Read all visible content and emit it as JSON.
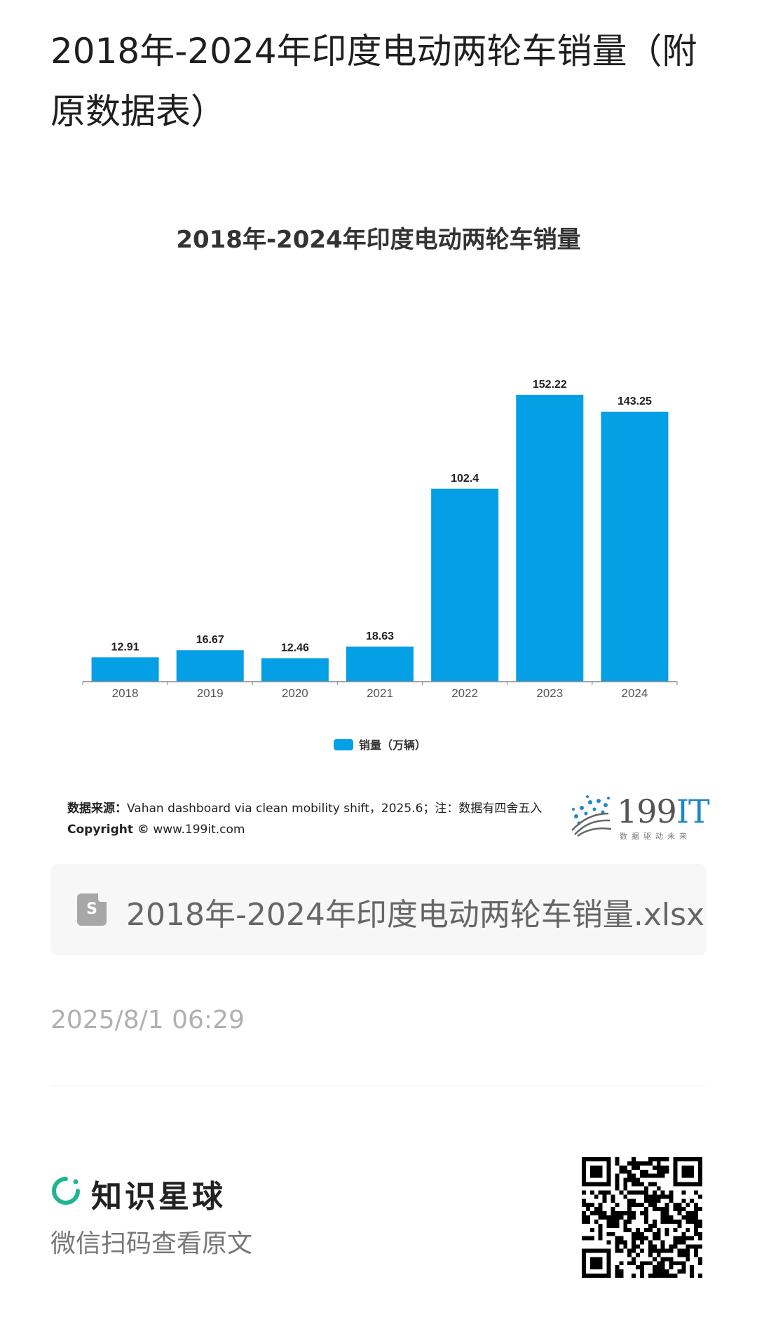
{
  "page": {
    "title": "2018年-2024年印度电动两轮车销量（附原数据表）"
  },
  "chart_data": {
    "type": "bar",
    "title": "2018年-2024年印度电动两轮车销量",
    "categories": [
      "2018",
      "2019",
      "2020",
      "2021",
      "2022",
      "2023",
      "2024"
    ],
    "series": [
      {
        "name": "销量（万辆）",
        "values": [
          12.91,
          16.67,
          12.46,
          18.63,
          102.4,
          152.22,
          143.25
        ]
      }
    ],
    "data_labels": [
      "12.91",
      "16.67",
      "12.46",
      "18.63",
      "102.4",
      "152.22",
      "143.25"
    ],
    "ylim": [
      0,
      160
    ],
    "grid": false,
    "legend_position": "bottom-center",
    "bar_color": "#049fe4"
  },
  "source": {
    "label": "数据来源：",
    "text": "Vahan dashboard via clean mobility shift，2025.6；注：数据有四舍五入",
    "copyright_label": "Copyright ©",
    "copyright_text": " www.199it.com"
  },
  "brand": {
    "number": "199",
    "it": "IT",
    "tagline": "数据驱动未来"
  },
  "file": {
    "icon": "spreadsheet-file-icon",
    "icon_letter": "S",
    "name": "2018年-2024年印度电动两轮车销量.xlsx"
  },
  "meta": {
    "timestamp": "2025/8/1 06:29"
  },
  "footer": {
    "app_name": "知识星球",
    "hint": "微信扫码查看原文",
    "accent": "#1fb58f"
  }
}
